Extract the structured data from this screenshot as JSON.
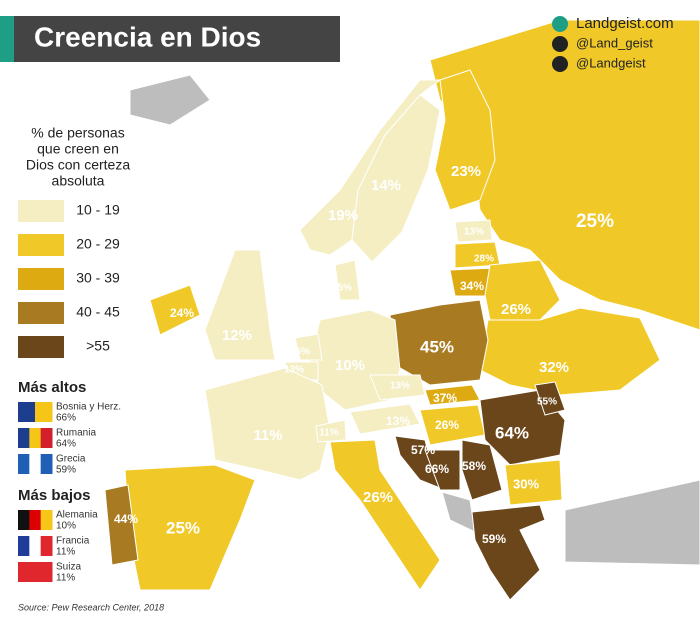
{
  "title": "Creencia en Dios",
  "social": [
    "Landgeist.com",
    "@Land_geist",
    "@Landgeist"
  ],
  "legend": {
    "title": [
      "% de personas",
      "que creen en",
      "Dios con certeza",
      "absoluta"
    ],
    "items": [
      {
        "label": "10 - 19",
        "color": "#f4eec2"
      },
      {
        "label": "20 - 29",
        "color": "#f0c928"
      },
      {
        "label": "30 - 39",
        "color": "#deaa12"
      },
      {
        "label": "40 - 45",
        "color": "#a87a22"
      },
      {
        "label": ">55",
        "color": "#6b461b"
      }
    ]
  },
  "highest": {
    "title": "Más altos",
    "items": [
      {
        "name": "Bosnia y Herz.",
        "value": "66%"
      },
      {
        "name": "Rumania",
        "value": "64%"
      },
      {
        "name": "Grecia",
        "value": "59%"
      }
    ]
  },
  "lowest": {
    "title": "Más bajos",
    "items": [
      {
        "name": "Alemania",
        "value": "10%"
      },
      {
        "name": "Francia",
        "value": "11%"
      },
      {
        "name": "Suiza",
        "value": "11%"
      }
    ]
  },
  "labels": [
    "23%",
    "14%",
    "19%",
    "25%",
    "13%",
    "28%",
    "34%",
    "15%",
    "24%",
    "26%",
    "12%",
    "45%",
    "15%",
    "13%",
    "10%",
    "32%",
    "13%",
    "55%",
    "37%",
    "11%",
    "11%",
    "13%",
    "26%",
    "64%",
    "57%",
    "66%",
    "58%",
    "30%",
    "26%",
    "44%",
    "25%",
    "59%"
  ],
  "source": "Source: Pew Research Center, 2018"
}
